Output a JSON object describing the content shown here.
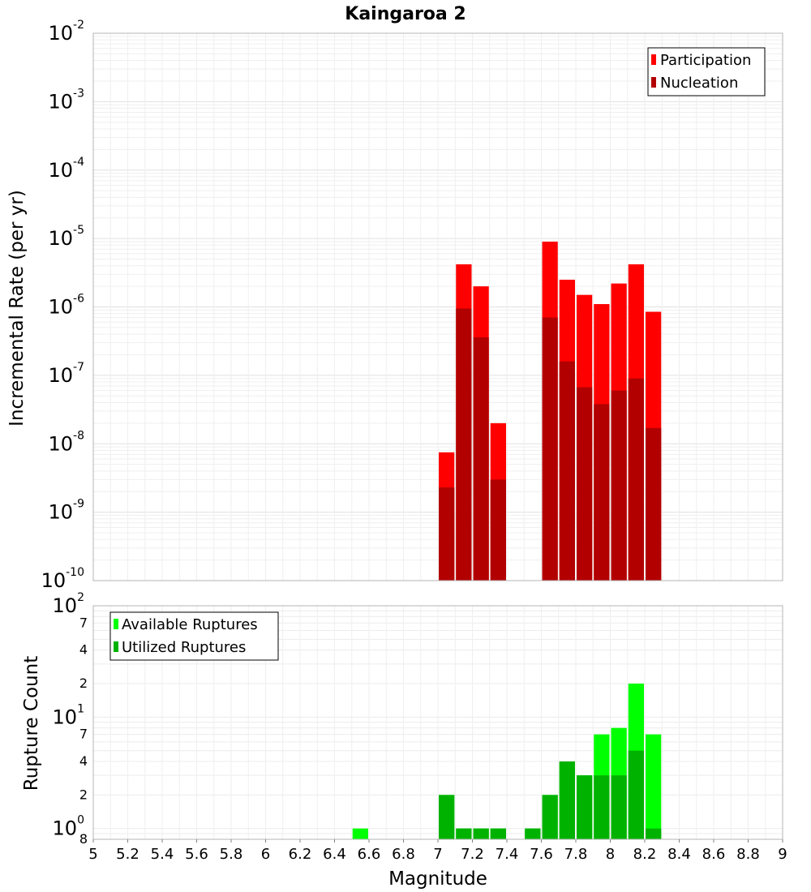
{
  "chart_data": [
    {
      "type": "bar",
      "title": "Kaingaroa 2",
      "xlabel": "Magnitude",
      "ylabel": "Incremental Rate (per yr)",
      "yscale": "log",
      "ylim": [
        1e-10,
        0.01
      ],
      "xlim": [
        5,
        9
      ],
      "bin_width": 0.1,
      "legend_position": "top-right",
      "y_ticks": [
        {
          "base": "10",
          "exp": "-10"
        },
        {
          "base": "10",
          "exp": "-9"
        },
        {
          "base": "10",
          "exp": "-8"
        },
        {
          "base": "10",
          "exp": "-7"
        },
        {
          "base": "10",
          "exp": "-6"
        },
        {
          "base": "10",
          "exp": "-5"
        },
        {
          "base": "10",
          "exp": "-4"
        },
        {
          "base": "10",
          "exp": "-3"
        },
        {
          "base": "10",
          "exp": "-2"
        }
      ],
      "series": [
        {
          "name": "Participation",
          "color": "#ff0000",
          "x": [
            7.0,
            7.1,
            7.2,
            7.3,
            7.6,
            7.7,
            7.8,
            7.9,
            8.0,
            8.1,
            8.2
          ],
          "values": [
            7.5e-09,
            4.2e-06,
            2e-06,
            2e-08,
            9e-06,
            2.5e-06,
            1.5e-06,
            1.1e-06,
            2.2e-06,
            4.2e-06,
            8.5e-07
          ]
        },
        {
          "name": "Nucleation",
          "color": "#b20000",
          "x": [
            7.0,
            7.1,
            7.2,
            7.3,
            7.6,
            7.7,
            7.8,
            7.9,
            8.0,
            8.1,
            8.2
          ],
          "values": [
            2.3e-09,
            9.5e-07,
            3.6e-07,
            3e-09,
            7e-07,
            1.6e-07,
            6.7e-08,
            3.8e-08,
            6e-08,
            9e-08,
            1.7e-08
          ]
        }
      ]
    },
    {
      "type": "bar",
      "xlabel": "Magnitude",
      "ylabel": "Rupture Count",
      "yscale": "log",
      "ylim": [
        0.8,
        100
      ],
      "xlim": [
        5,
        9
      ],
      "bin_width": 0.1,
      "legend_position": "top-left",
      "y_ticks": [
        {
          "base": "10",
          "exp": "0",
          "value": 1
        },
        {
          "base": "10",
          "exp": "1",
          "value": 10
        },
        {
          "base": "10",
          "exp": "2",
          "value": 100
        }
      ],
      "y_minor_labels": [
        {
          "label": "8",
          "value": 0.8
        },
        {
          "label": "2",
          "value": 2
        },
        {
          "label": "4",
          "value": 4
        },
        {
          "label": "7",
          "value": 7
        },
        {
          "label": "2",
          "value": 20
        },
        {
          "label": "4",
          "value": 40
        },
        {
          "label": "7",
          "value": 70
        }
      ],
      "x_ticks": [
        "5",
        "5.2",
        "5.4",
        "5.6",
        "5.8",
        "6",
        "6.2",
        "6.4",
        "6.6",
        "6.8",
        "7",
        "7.2",
        "7.4",
        "7.6",
        "7.8",
        "8",
        "8.2",
        "8.4",
        "8.6",
        "8.8",
        "9"
      ],
      "series": [
        {
          "name": "Available Ruptures",
          "color": "#00ff00",
          "x": [
            6.5,
            7.0,
            7.1,
            7.2,
            7.3,
            7.5,
            7.6,
            7.7,
            7.8,
            7.9,
            8.0,
            8.1,
            8.2
          ],
          "values": [
            1,
            2,
            1,
            1,
            1,
            1,
            2,
            4,
            3,
            7,
            8,
            20,
            7
          ]
        },
        {
          "name": "Utilized Ruptures",
          "color": "#00b200",
          "x": [
            7.0,
            7.1,
            7.2,
            7.3,
            7.5,
            7.6,
            7.7,
            7.8,
            7.9,
            8.0,
            8.1,
            8.2
          ],
          "values": [
            2,
            1,
            1,
            1,
            1,
            2,
            4,
            3,
            3,
            3,
            5,
            1
          ]
        }
      ]
    }
  ]
}
